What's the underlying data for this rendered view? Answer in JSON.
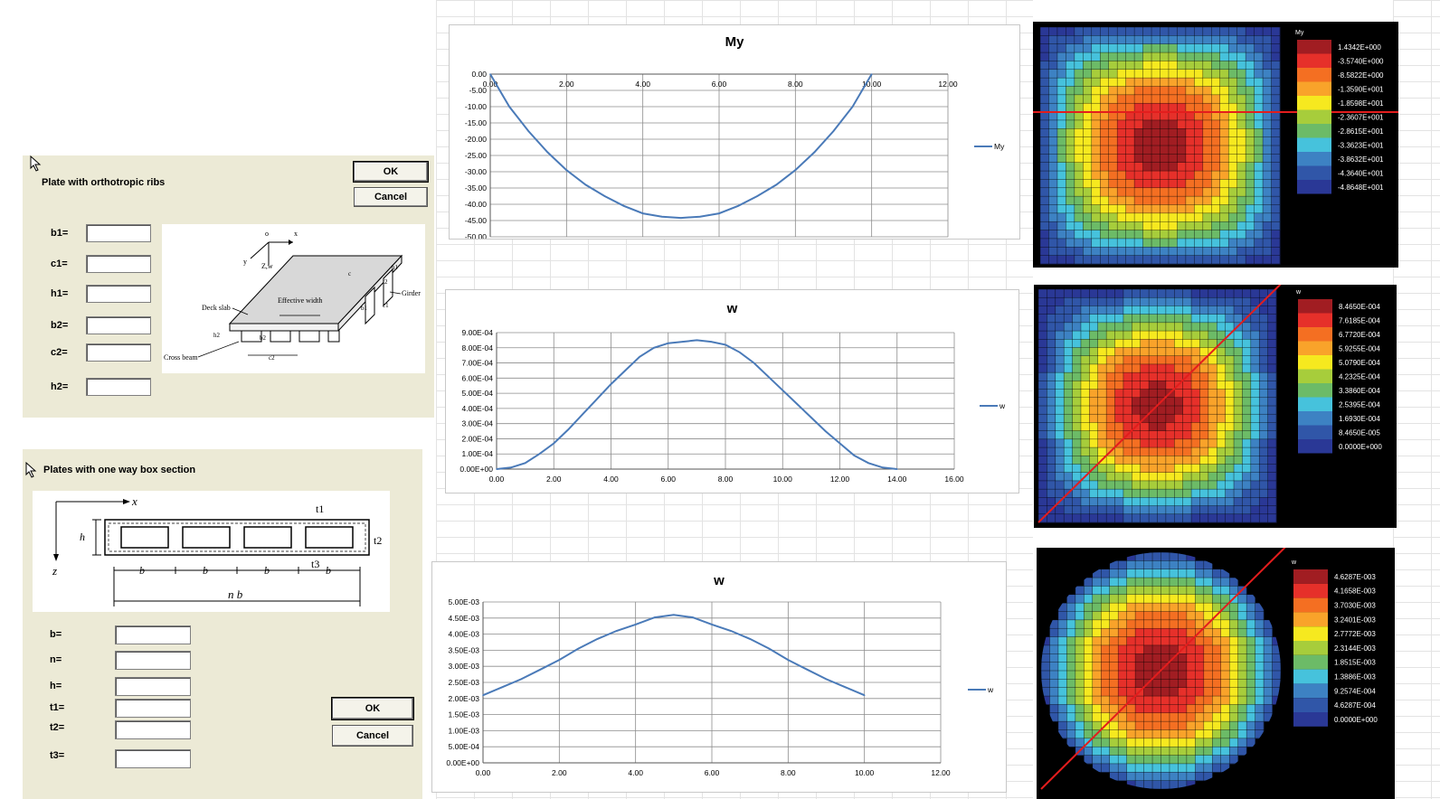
{
  "dialog1": {
    "title": "Plate with orthotropic ribs",
    "ok_label": "OK",
    "cancel_label": "Cancel",
    "fields": [
      {
        "label": "b1=",
        "value": ""
      },
      {
        "label": "c1=",
        "value": ""
      },
      {
        "label": "h1=",
        "value": ""
      },
      {
        "label": "b2=",
        "value": ""
      },
      {
        "label": "c2=",
        "value": ""
      },
      {
        "label": "h2=",
        "value": ""
      }
    ],
    "figure": {
      "o": "o",
      "x": "x",
      "y": "y",
      "zw": "Z,w",
      "deck_slab": "Deck slab",
      "effective_width": "Effective width",
      "girder": "Girder",
      "cross_beam": "Cross beam",
      "b1": "b1",
      "h1": "h1",
      "c1": "c1",
      "b2": "b2",
      "h2": "h2",
      "c2": "c2",
      "t2": "t2",
      "c": "c"
    }
  },
  "dialog2": {
    "title": "Plates with one way box section",
    "ok_label": "OK",
    "cancel_label": "Cancel",
    "fields": [
      {
        "label": "b=",
        "value": ""
      },
      {
        "label": "n=",
        "value": ""
      },
      {
        "label": "h=",
        "value": ""
      },
      {
        "label": "t1=",
        "value": ""
      },
      {
        "label": "t2=",
        "value": ""
      },
      {
        "label": "t3=",
        "value": ""
      }
    ],
    "figure": {
      "x": "x",
      "z": "z",
      "h": "h",
      "b": "b",
      "nb": "n b",
      "t1": "t1",
      "t2": "t2",
      "t3": "t3"
    }
  },
  "chart_data": [
    {
      "type": "line",
      "title": "My",
      "legend": "My",
      "legend_position": "right",
      "x_ticks": [
        "0.00",
        "2.00",
        "4.00",
        "6.00",
        "8.00",
        "10.00",
        "12.00"
      ],
      "y_ticks": [
        "0.00",
        "-5.00",
        "-10.00",
        "-15.00",
        "-20.00",
        "-25.00",
        "-30.00",
        "-35.00",
        "-40.00",
        "-45.00",
        "-50.00"
      ],
      "xlim": [
        0,
        12
      ],
      "ylim": [
        -50,
        0
      ],
      "x_axis_position": "top",
      "series": [
        {
          "name": "My",
          "color": "#4a7ab8",
          "x": [
            0,
            0.25,
            0.5,
            1,
            1.5,
            2,
            2.5,
            3,
            3.5,
            4,
            4.5,
            5,
            5.5,
            6,
            6.5,
            7,
            7.5,
            8,
            8.5,
            9,
            9.5,
            9.75,
            10
          ],
          "y": [
            0,
            -5,
            -10,
            -17.5,
            -24,
            -29.5,
            -34,
            -37.5,
            -40.5,
            -42.8,
            -43.8,
            -44.2,
            -43.8,
            -42.8,
            -40.5,
            -37.5,
            -34,
            -29.5,
            -24,
            -17.5,
            -10,
            -5,
            0
          ]
        }
      ]
    },
    {
      "type": "line",
      "title": "w",
      "legend": "w",
      "legend_position": "right",
      "x_ticks": [
        "0.00",
        "2.00",
        "4.00",
        "6.00",
        "8.00",
        "10.00",
        "12.00",
        "14.00",
        "16.00"
      ],
      "y_ticks": [
        "9.00E-04",
        "8.00E-04",
        "7.00E-04",
        "6.00E-04",
        "5.00E-04",
        "4.00E-04",
        "3.00E-04",
        "2.00E-04",
        "1.00E-04",
        "0.00E+00"
      ],
      "xlim": [
        0,
        16
      ],
      "ylim": [
        0,
        0.0009
      ],
      "series": [
        {
          "name": "w",
          "color": "#4a7ab8",
          "x": [
            0,
            0.5,
            1,
            1.5,
            2,
            2.5,
            3,
            3.5,
            4,
            4.5,
            5,
            5.5,
            6,
            6.5,
            7,
            7.5,
            8,
            8.5,
            9,
            9.5,
            10,
            10.5,
            11,
            11.5,
            12,
            12.5,
            13,
            13.5,
            14
          ],
          "y": [
            0,
            1e-05,
            4e-05,
            0.0001,
            0.00017,
            0.00026,
            0.00036,
            0.00046,
            0.00056,
            0.00065,
            0.00074,
            0.0008,
            0.00083,
            0.00084,
            0.00085,
            0.00084,
            0.00082,
            0.00077,
            0.0007,
            0.00061,
            0.00052,
            0.00043,
            0.00034,
            0.00025,
            0.00017,
            9e-05,
            4e-05,
            1e-05,
            0
          ]
        }
      ]
    },
    {
      "type": "line",
      "title": "w",
      "legend": "w",
      "legend_position": "right",
      "x_ticks": [
        "0.00",
        "2.00",
        "4.00",
        "6.00",
        "8.00",
        "10.00",
        "12.00"
      ],
      "y_ticks": [
        "5.00E-03",
        "4.50E-03",
        "4.00E-03",
        "3.50E-03",
        "3.00E-03",
        "2.50E-03",
        "2.00E-03",
        "1.50E-03",
        "1.00E-03",
        "5.00E-04",
        "0.00E+00"
      ],
      "xlim": [
        0,
        12
      ],
      "ylim": [
        0,
        0.005
      ],
      "series": [
        {
          "name": "w",
          "color": "#4a7ab8",
          "x": [
            0,
            0.5,
            1,
            1.5,
            2,
            2.5,
            3,
            3.5,
            4,
            4.5,
            5,
            5.5,
            6,
            6.5,
            7,
            7.5,
            8,
            8.5,
            9,
            9.5,
            10
          ],
          "y": [
            0.0021,
            0.00235,
            0.0026,
            0.0029,
            0.0032,
            0.00355,
            0.00385,
            0.0041,
            0.0043,
            0.00452,
            0.0046,
            0.00452,
            0.0043,
            0.0041,
            0.00385,
            0.00355,
            0.0032,
            0.0029,
            0.0026,
            0.00235,
            0.0021
          ]
        }
      ]
    }
  ],
  "heatmaps": [
    {
      "shape": "square",
      "legend_title": "My",
      "line": "horizontal",
      "cmap": "my",
      "labels": [
        "1.4342E+000",
        "-3.5740E+000",
        "-8.5822E+000",
        "-1.3590E+001",
        "-1.8598E+001",
        "-2.3607E+001",
        "-2.8615E+001",
        "-3.3623E+001",
        "-3.8632E+001",
        "-4.3640E+001",
        "-4.8648E+001"
      ],
      "colors": [
        "#a11d22",
        "#e6302a",
        "#f46f22",
        "#f9a32a",
        "#f6e91f",
        "#a7cd3b",
        "#6cbb67",
        "#46c2dc",
        "#3d82c3",
        "#3056a8",
        "#2a3896"
      ]
    },
    {
      "shape": "square",
      "legend_title": "w",
      "line": "diagonal",
      "cmap": "w",
      "labels": [
        "8.4650E-004",
        "7.6185E-004",
        "6.7720E-004",
        "5.9255E-004",
        "5.0790E-004",
        "4.2325E-004",
        "3.3860E-004",
        "2.5395E-004",
        "1.6930E-004",
        "8.4650E-005",
        "0.0000E+000"
      ],
      "colors": [
        "#a11d22",
        "#e6302a",
        "#f46f22",
        "#f9a32a",
        "#f6e91f",
        "#a7cd3b",
        "#6cbb67",
        "#46c2dc",
        "#3d82c3",
        "#3056a8",
        "#2a3896"
      ]
    },
    {
      "shape": "circle",
      "legend_title": "w",
      "line": "diagonal",
      "cmap": "w",
      "labels": [
        "4.6287E-003",
        "4.1658E-003",
        "3.7030E-003",
        "3.2401E-003",
        "2.7772E-003",
        "2.3144E-003",
        "1.8515E-003",
        "1.3886E-003",
        "9.2574E-004",
        "4.6287E-004",
        "0.0000E+000"
      ],
      "colors": [
        "#a11d22",
        "#e6302a",
        "#f46f22",
        "#f9a32a",
        "#f6e91f",
        "#a7cd3b",
        "#6cbb67",
        "#46c2dc",
        "#3d82c3",
        "#3056a8",
        "#2a3896"
      ]
    }
  ]
}
